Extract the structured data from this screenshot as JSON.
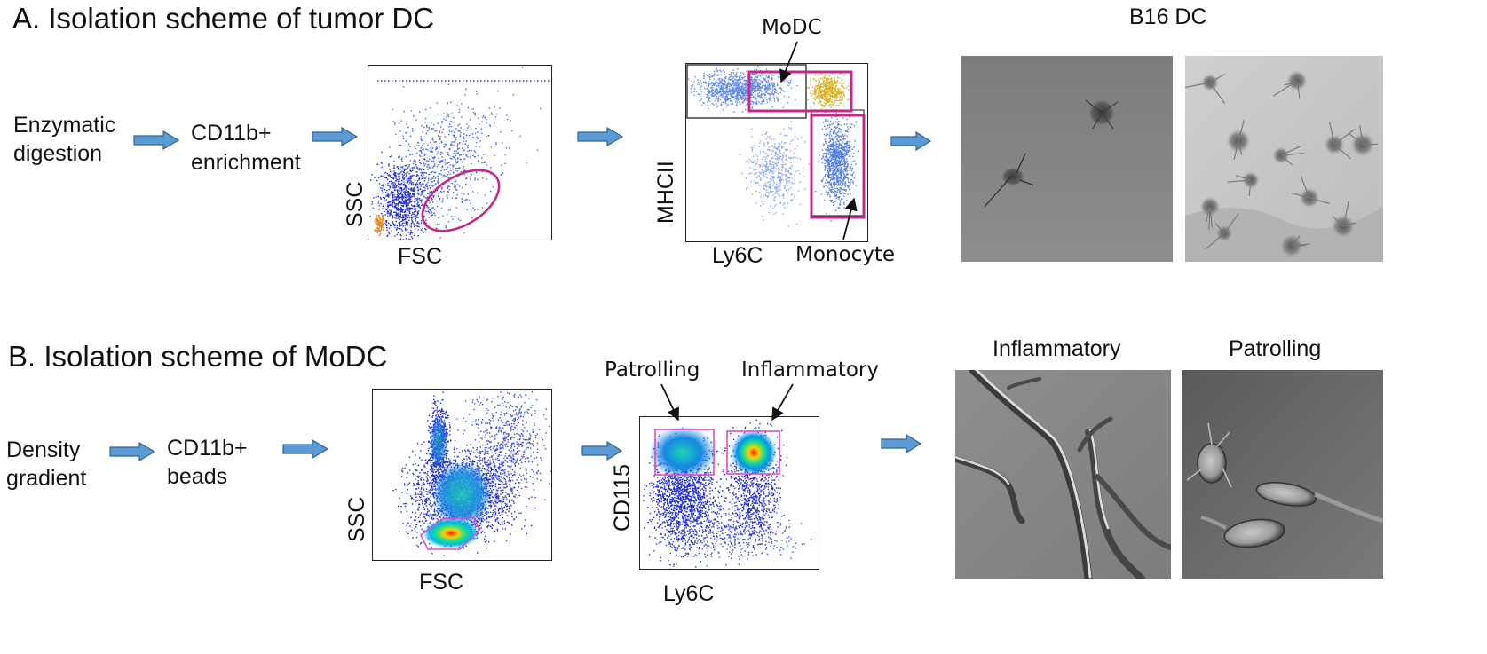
{
  "panel_a": {
    "title": "A. Isolation scheme of tumor DC",
    "step1": [
      "Enzymatic",
      "digestion"
    ],
    "step2": [
      "CD11b+",
      "enrichment"
    ],
    "plot1": {
      "x_axis": "FSC",
      "y_axis": "SSC"
    },
    "plot2": {
      "x_axis": "Ly6C",
      "y_axis": "MHCII",
      "label_top": "MoDC",
      "label_bottom": "Monocyte"
    },
    "images_title": "B16 DC"
  },
  "panel_b": {
    "title": "B. Isolation scheme of MoDC",
    "step1": [
      "Density",
      "gradient"
    ],
    "step2": [
      "CD11b+",
      "beads"
    ],
    "plot1": {
      "x_axis": "FSC",
      "y_axis": "SSC"
    },
    "plot2": {
      "x_axis": "Ly6C",
      "y_axis": "CD115",
      "label_left": "Patrolling",
      "label_right": "Inflammatory"
    },
    "image1_title": "Inflammatory",
    "image2_title": "Patrolling"
  },
  "colors": {
    "arrow": "#5b9bd5",
    "arrow_edge": "#2f6496",
    "gate": "#c8278a",
    "gate_light": "#e04cc8",
    "dots": "#1f2bd6"
  }
}
